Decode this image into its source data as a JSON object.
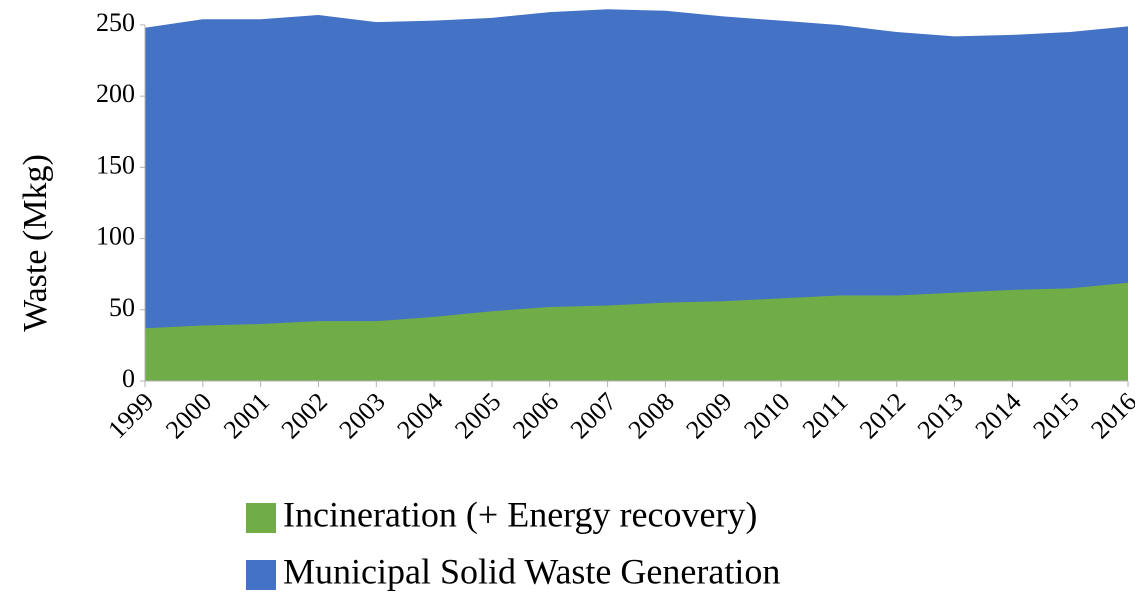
{
  "chart_data": {
    "type": "area",
    "y_label": "Waste (Mkg)",
    "categories": [
      "1999",
      "2000",
      "2001",
      "2002",
      "2003",
      "2004",
      "2005",
      "2006",
      "2007",
      "2008",
      "2009",
      "2010",
      "2011",
      "2012",
      "2013",
      "2014",
      "2015",
      "2016"
    ],
    "series": [
      {
        "name": "Incineration (+ Energy recovery)",
        "color": "#70ad47",
        "values": [
          37,
          39,
          40,
          42,
          42,
          45,
          49,
          52,
          53,
          55,
          56,
          58,
          60,
          60,
          62,
          64,
          65,
          69
        ]
      },
      {
        "name": "Municipal Solid Waste Generation",
        "color": "#4472c4",
        "values": [
          248,
          254,
          254,
          257,
          252,
          253,
          255,
          259,
          261,
          260,
          256,
          253,
          250,
          245,
          242,
          243,
          245,
          249
        ]
      }
    ],
    "ylim": [
      0,
      264
    ],
    "yticks": [
      0,
      50,
      100,
      150,
      200,
      250
    ],
    "grid": false
  }
}
